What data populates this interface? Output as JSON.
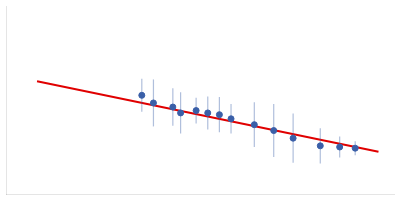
{
  "chart_data": {
    "type": "scatter",
    "series": [
      {
        "type": "scatter",
        "marker": "circle",
        "color": "#3a5fa8",
        "x": [
          0.115,
          0.13,
          0.155,
          0.165,
          0.185,
          0.2,
          0.215,
          0.23,
          0.26,
          0.285,
          0.31,
          0.345,
          0.37,
          0.39
        ],
        "values": [
          3.68,
          3.55,
          3.48,
          3.38,
          3.42,
          3.38,
          3.35,
          3.28,
          3.18,
          3.08,
          2.95,
          2.82,
          2.8,
          2.78
        ],
        "yerr": [
          0.28,
          0.4,
          0.32,
          0.35,
          0.22,
          0.28,
          0.3,
          0.25,
          0.38,
          0.45,
          0.42,
          0.3,
          0.18,
          0.12
        ]
      },
      {
        "type": "line",
        "line_style": "solid",
        "color": "#e00000",
        "x": [
          -0.02,
          0.42
        ],
        "values": [
          3.92,
          2.72
        ]
      }
    ],
    "xlim": [
      -0.06,
      0.44
    ],
    "ylim": [
      2.0,
      5.2
    ],
    "grid": false,
    "legend": false,
    "tick_labels": false
  }
}
